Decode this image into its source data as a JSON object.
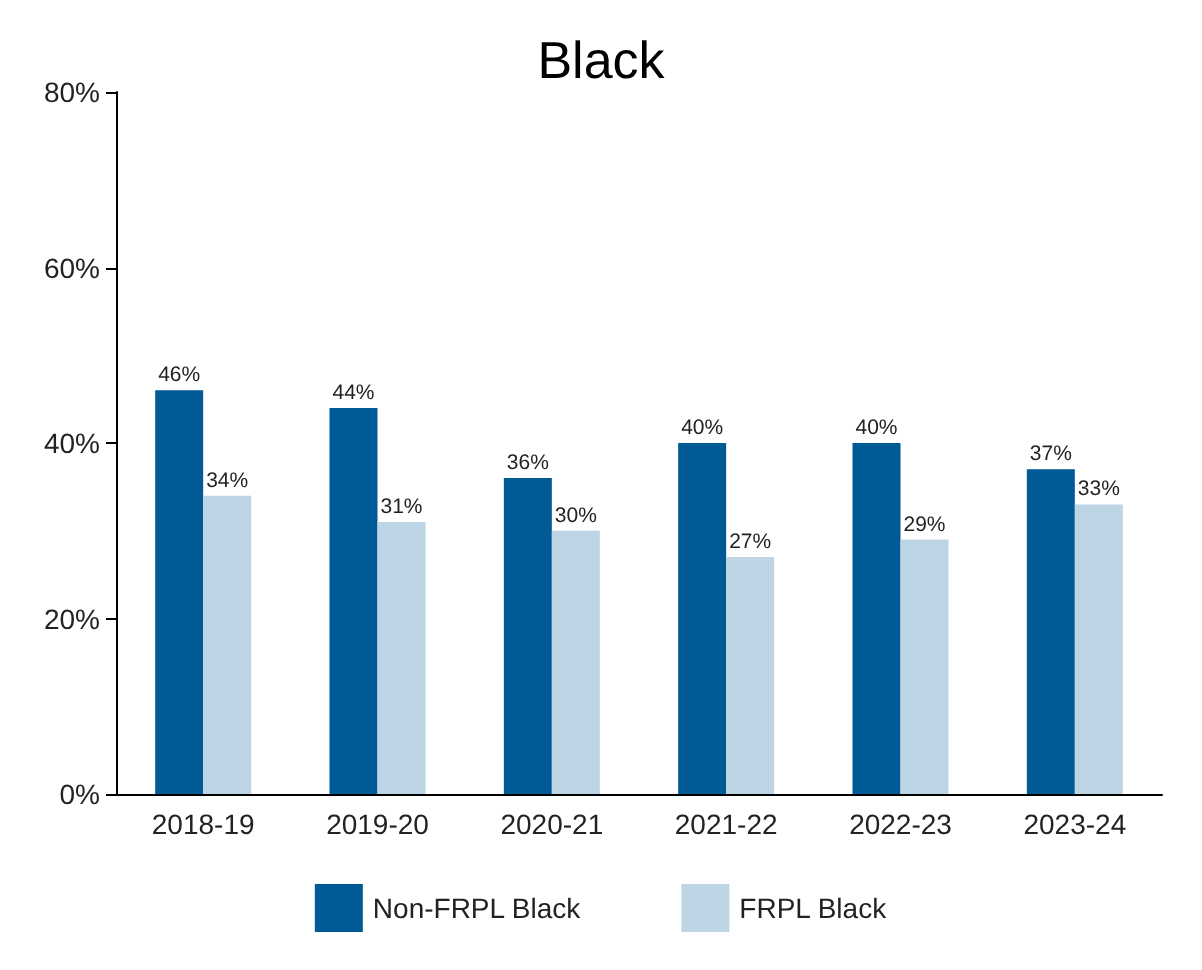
{
  "chart_data": {
    "type": "bar",
    "title": "Black",
    "categories": [
      "2018-19",
      "2019-20",
      "2020-21",
      "2021-22",
      "2022-23",
      "2023-24"
    ],
    "series": [
      {
        "name": "Non-FRPL Black",
        "color": "#005a96",
        "values": [
          46,
          44,
          36,
          40,
          40,
          37
        ],
        "value_labels": [
          "46%",
          "44%",
          "36%",
          "40%",
          "40%",
          "37%"
        ]
      },
      {
        "name": "FRPL Black",
        "color": "#bdd4e4",
        "values": [
          34,
          31,
          30,
          27,
          29,
          33
        ],
        "value_labels": [
          "34%",
          "31%",
          "30%",
          "27%",
          "29%",
          "33%"
        ]
      }
    ],
    "ylim": [
      0,
      80
    ],
    "yticks": [
      {
        "value": 0,
        "label": "0%"
      },
      {
        "value": 20,
        "label": "20%"
      },
      {
        "value": 40,
        "label": "40%"
      },
      {
        "value": 60,
        "label": "60%"
      },
      {
        "value": 80,
        "label": "80%"
      }
    ],
    "grid": false,
    "legend": "bottom"
  }
}
